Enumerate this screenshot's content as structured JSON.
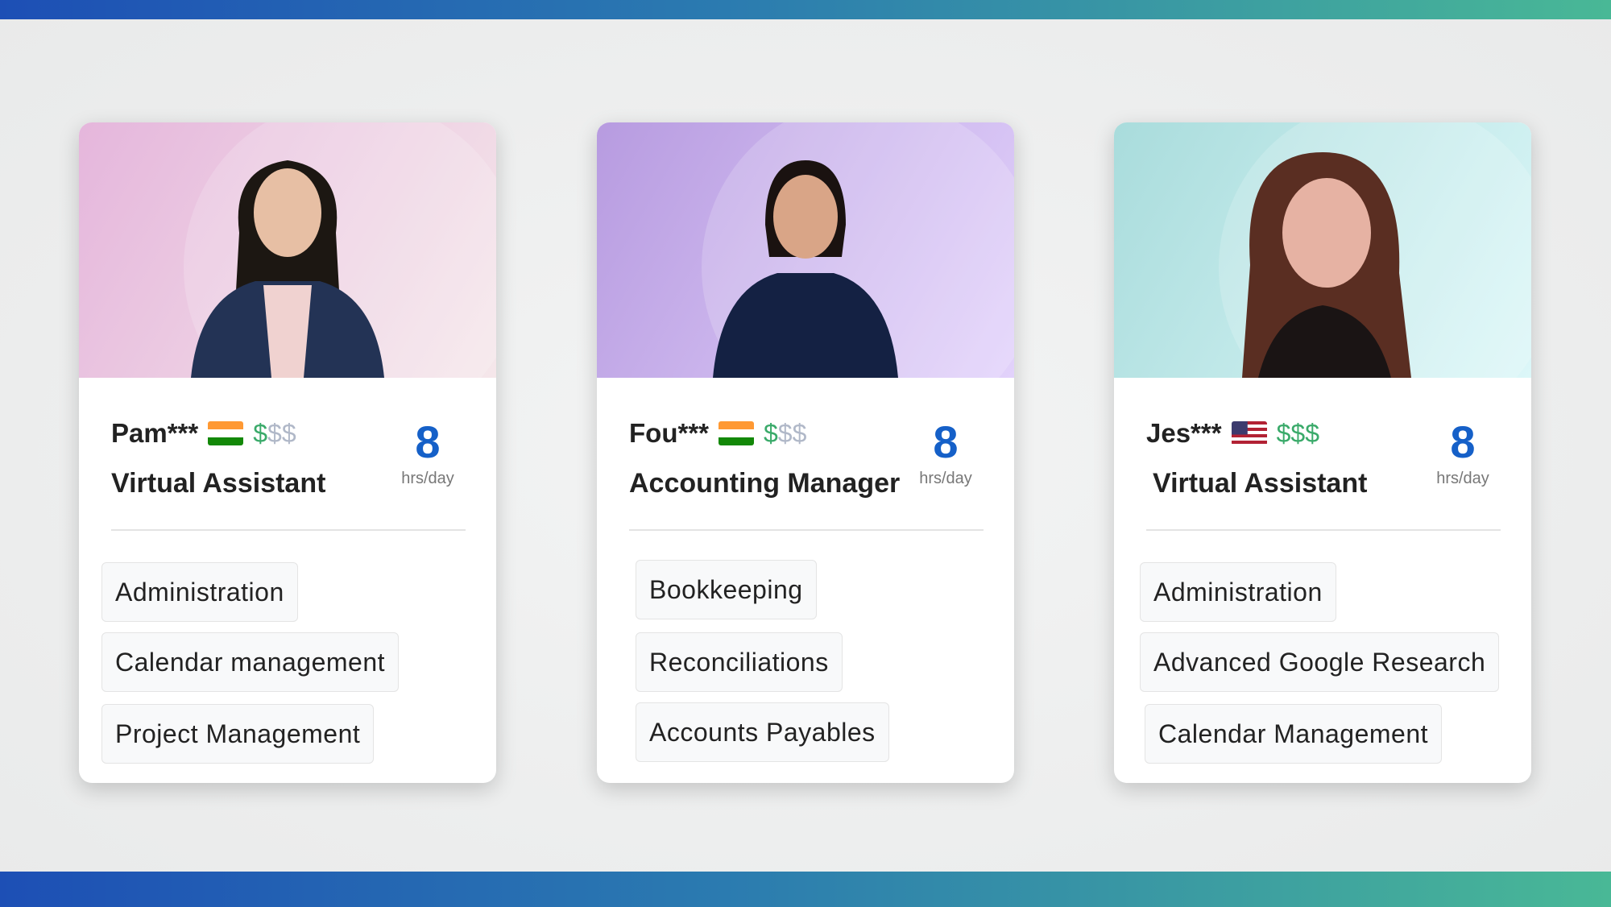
{
  "colors": {
    "accent": "#1560c8",
    "price_active": "#3aaa6a",
    "price_inactive": "#b0b8c8"
  },
  "cards": [
    {
      "name": "Pam***",
      "flag": "india-flag-icon",
      "price": "$$$",
      "title": "Virtual Assistant",
      "hours": "8",
      "hours_unit": "hrs/day",
      "tags": [
        "Administration",
        "Calendar management",
        "Project Management"
      ],
      "photo_bg": [
        "#e5b6dc",
        "#f5e7ea"
      ]
    },
    {
      "name": "Fou***",
      "flag": "india-flag-icon",
      "price": "$$$",
      "title": "Accounting Manager",
      "hours": "8",
      "hours_unit": "hrs/day",
      "tags": [
        "Bookkeeping",
        "Reconciliations",
        "Accounts Payables"
      ],
      "photo_bg": [
        "#b79be0",
        "#e2d2fb"
      ]
    },
    {
      "name": "Jes***",
      "flag": "usa-flag-icon",
      "price": "$$$",
      "title": "Virtual Assistant",
      "hours": "8",
      "hours_unit": "hrs/day",
      "tags": [
        "Administration",
        "Advanced Google Research",
        "Calendar Management"
      ],
      "photo_bg": [
        "#a9dcdc",
        "#dcf7f8"
      ]
    }
  ]
}
